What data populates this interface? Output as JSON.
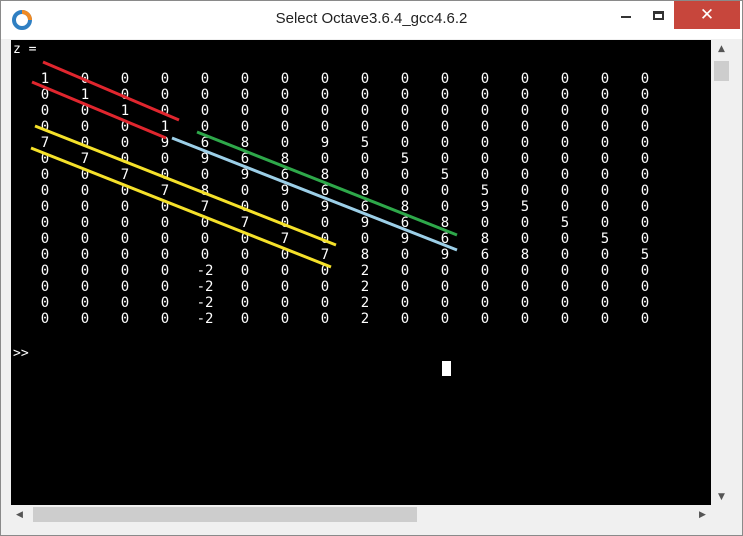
{
  "window": {
    "title": "Select Octave3.6.4_gcc4.6.2",
    "minimize_label": "",
    "close_glyph": "✕",
    "icon": "octave-logo-icon"
  },
  "console": {
    "var_label": "z =",
    "prompt": ">>",
    "matrix": [
      [
        "1",
        "0",
        "0",
        "0",
        "0",
        "0",
        "0",
        "0",
        "0",
        "0",
        "0",
        "0",
        "0",
        "0",
        "0",
        "0"
      ],
      [
        "0",
        "1",
        "0",
        "0",
        "0",
        "0",
        "0",
        "0",
        "0",
        "0",
        "0",
        "0",
        "0",
        "0",
        "0",
        "0"
      ],
      [
        "0",
        "0",
        "1",
        "0",
        "0",
        "0",
        "0",
        "0",
        "0",
        "0",
        "0",
        "0",
        "0",
        "0",
        "0",
        "0"
      ],
      [
        "0",
        "0",
        "0",
        "1",
        "0",
        "0",
        "0",
        "0",
        "0",
        "0",
        "0",
        "0",
        "0",
        "0",
        "0",
        "0"
      ],
      [
        "7",
        "0",
        "0",
        "9",
        "6",
        "8",
        "0",
        "9",
        "5",
        "0",
        "0",
        "0",
        "0",
        "0",
        "0",
        "0"
      ],
      [
        "0",
        "7",
        "0",
        "0",
        "9",
        "6",
        "8",
        "0",
        "0",
        "5",
        "0",
        "0",
        "0",
        "0",
        "0",
        "0"
      ],
      [
        "0",
        "0",
        "7",
        "0",
        "0",
        "9",
        "6",
        "8",
        "0",
        "0",
        "5",
        "0",
        "0",
        "0",
        "0",
        "0"
      ],
      [
        "0",
        "0",
        "0",
        "7",
        "8",
        "0",
        "9",
        "6",
        "8",
        "0",
        "0",
        "5",
        "0",
        "0",
        "0",
        "0"
      ],
      [
        "0",
        "0",
        "0",
        "0",
        "7",
        "0",
        "0",
        "9",
        "6",
        "8",
        "0",
        "9",
        "5",
        "0",
        "0",
        "0"
      ],
      [
        "0",
        "0",
        "0",
        "0",
        "0",
        "7",
        "0",
        "0",
        "9",
        "6",
        "8",
        "0",
        "0",
        "5",
        "0",
        "0"
      ],
      [
        "0",
        "0",
        "0",
        "0",
        "0",
        "0",
        "7",
        "0",
        "0",
        "9",
        "6",
        "8",
        "0",
        "0",
        "5",
        "0"
      ],
      [
        "0",
        "0",
        "0",
        "0",
        "0",
        "0",
        "0",
        "7",
        "8",
        "0",
        "9",
        "6",
        "8",
        "0",
        "0",
        "5"
      ],
      [
        "0",
        "0",
        "0",
        "0",
        "-2",
        "0",
        "0",
        "0",
        "2",
        "0",
        "0",
        "0",
        "0",
        "0",
        "0",
        "0"
      ],
      [
        "0",
        "0",
        "0",
        "0",
        "-2",
        "0",
        "0",
        "0",
        "2",
        "0",
        "0",
        "0",
        "0",
        "0",
        "0",
        "0"
      ],
      [
        "0",
        "0",
        "0",
        "0",
        "-2",
        "0",
        "0",
        "0",
        "2",
        "0",
        "0",
        "0",
        "0",
        "0",
        "0",
        "0"
      ],
      [
        "0",
        "0",
        "0",
        "0",
        "-2",
        "0",
        "0",
        "0",
        "2",
        "0",
        "0",
        "0",
        "0",
        "0",
        "0",
        "0"
      ]
    ]
  },
  "colors": {
    "red_line": "#e0262e",
    "yellow_line": "#f5e12a",
    "green_line": "#2ea84a",
    "blue_line": "#9ccfe8"
  },
  "scrollbar": {
    "up_glyph": "▲",
    "down_glyph": "▼",
    "left_glyph": "◀",
    "right_glyph": "▶"
  }
}
